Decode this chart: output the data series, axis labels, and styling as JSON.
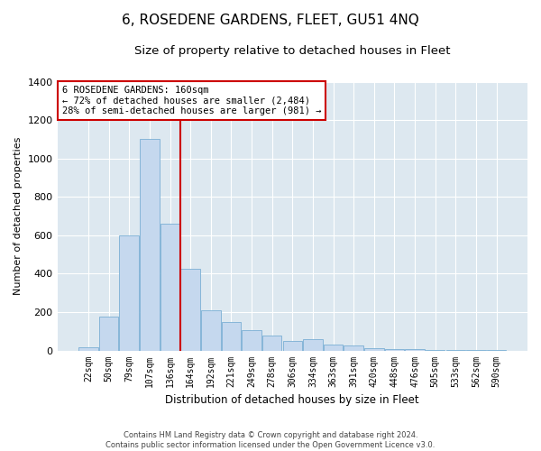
{
  "title": "6, ROSEDENE GARDENS, FLEET, GU51 4NQ",
  "subtitle": "Size of property relative to detached houses in Fleet",
  "xlabel": "Distribution of detached houses by size in Fleet",
  "ylabel": "Number of detached properties",
  "footer_line1": "Contains HM Land Registry data © Crown copyright and database right 2024.",
  "footer_line2": "Contains public sector information licensed under the Open Government Licence v3.0.",
  "annotation_line1": "6 ROSEDENE GARDENS: 160sqm",
  "annotation_line2": "← 72% of detached houses are smaller (2,484)",
  "annotation_line3": "28% of semi-detached houses are larger (981) →",
  "bar_color": "#c5d8ee",
  "bar_edge_color": "#7aafd4",
  "vline_color": "#cc0000",
  "vline_x": 4.5,
  "categories": [
    "22sqm",
    "50sqm",
    "79sqm",
    "107sqm",
    "136sqm",
    "164sqm",
    "192sqm",
    "221sqm",
    "249sqm",
    "278sqm",
    "306sqm",
    "334sqm",
    "363sqm",
    "391sqm",
    "420sqm",
    "448sqm",
    "476sqm",
    "505sqm",
    "533sqm",
    "562sqm",
    "590sqm"
  ],
  "values": [
    15,
    175,
    600,
    1100,
    660,
    425,
    210,
    150,
    105,
    80,
    50,
    60,
    30,
    25,
    10,
    7,
    5,
    2,
    2,
    2,
    2
  ],
  "ylim": [
    0,
    1400
  ],
  "yticks": [
    0,
    200,
    400,
    600,
    800,
    1000,
    1200,
    1400
  ],
  "fig_bg": "#ffffff",
  "plot_bg": "#dde8f0",
  "title_fontsize": 11,
  "subtitle_fontsize": 9.5
}
